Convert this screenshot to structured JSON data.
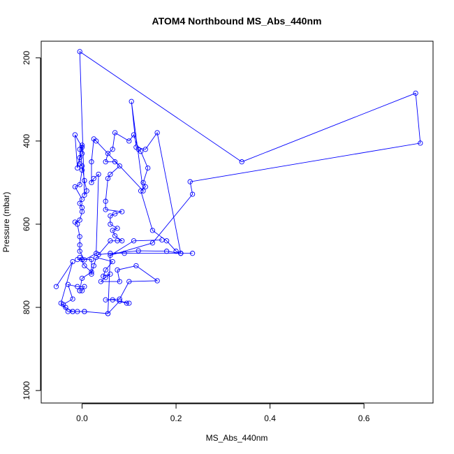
{
  "chart_data": {
    "type": "line",
    "title": "ATOM4 Northbound MS_Abs_440nm",
    "xlabel": "MS_Abs_440nm",
    "ylabel": "Pressure (mbar)",
    "xlim": [
      -0.087,
      0.747
    ],
    "ylim": [
      1030,
      160
    ],
    "y_reversed": true,
    "xticks": [
      0.0,
      0.2,
      0.4,
      0.6
    ],
    "xtick_labels": [
      "0.0",
      "0.2",
      "0.4",
      "0.6"
    ],
    "yticks": [
      200,
      400,
      600,
      800,
      1000
    ],
    "ytick_labels": [
      "200",
      "400",
      "600",
      "800",
      "1000"
    ],
    "grid": false,
    "legend": "none",
    "marker": "open-circle",
    "series": [
      {
        "color": "#0000ff",
        "points": [
          [
            -0.055,
            750
          ],
          [
            -0.02,
            690
          ],
          [
            -0.045,
            790
          ],
          [
            -0.03,
            810
          ],
          [
            -0.01,
            810
          ],
          [
            0.005,
            810
          ],
          [
            0.055,
            815
          ],
          [
            0.08,
            785
          ],
          [
            0.1,
            790
          ],
          [
            0.095,
            790
          ],
          [
            0.065,
            782
          ],
          [
            0.05,
            782
          ],
          [
            0.08,
            780
          ],
          [
            0.1,
            738
          ],
          [
            0.16,
            736
          ],
          [
            0.115,
            700
          ],
          [
            0.075,
            710
          ],
          [
            0.08,
            738
          ],
          [
            0.04,
            738
          ],
          [
            0.05,
            728
          ],
          [
            0.06,
            720
          ],
          [
            0.045,
            725
          ],
          [
            0.05,
            710
          ],
          [
            0.065,
            690
          ],
          [
            0.03,
            680
          ],
          [
            0.025,
            700
          ],
          [
            0.02,
            720
          ],
          [
            0.02,
            685
          ],
          [
            -0.01,
            685
          ],
          [
            0.0,
            685
          ],
          [
            -0.005,
            680
          ],
          [
            0.005,
            700
          ],
          [
            0.02,
            715
          ],
          [
            0.0,
            730
          ],
          [
            -0.005,
            760
          ],
          [
            -0.005,
            760
          ],
          [
            0.0,
            760
          ],
          [
            0.005,
            750
          ],
          [
            -0.01,
            750
          ],
          [
            -0.03,
            745
          ],
          [
            -0.02,
            780
          ],
          [
            -0.04,
            793
          ],
          [
            -0.035,
            800
          ],
          [
            -0.02,
            810
          ],
          [
            -0.02,
            810
          ],
          [
            0.005,
            810
          ],
          [
            0.055,
            815
          ],
          [
            0.06,
            670
          ],
          [
            0.09,
            670
          ],
          [
            0.21,
            670
          ],
          [
            0.235,
            670
          ],
          [
            0.21,
            670
          ],
          [
            0.18,
            665
          ],
          [
            0.12,
            664
          ],
          [
            0.035,
            673
          ],
          [
            0.06,
            640
          ],
          [
            0.075,
            640
          ],
          [
            0.085,
            640
          ],
          [
            0.07,
            628
          ],
          [
            0.065,
            615
          ],
          [
            0.075,
            610
          ],
          [
            0.06,
            600
          ],
          [
            0.06,
            580
          ],
          [
            0.07,
            575
          ],
          [
            0.085,
            570
          ],
          [
            0.05,
            565
          ],
          [
            0.05,
            545
          ],
          [
            0.055,
            490
          ],
          [
            0.06,
            480
          ],
          [
            0.08,
            460
          ],
          [
            0.07,
            450
          ],
          [
            0.05,
            450
          ],
          [
            0.055,
            430
          ],
          [
            0.065,
            420
          ],
          [
            0.07,
            380
          ],
          [
            0.1,
            400
          ],
          [
            0.11,
            385
          ],
          [
            0.12,
            420
          ],
          [
            0.125,
            425
          ],
          [
            0.14,
            465
          ],
          [
            0.13,
            500
          ],
          [
            0.135,
            510
          ],
          [
            0.125,
            520
          ],
          [
            0.15,
            615
          ],
          [
            0.18,
            640
          ],
          [
            0.2,
            665
          ],
          [
            0.21,
            670
          ],
          [
            0.16,
            380
          ],
          [
            0.135,
            420
          ],
          [
            0.115,
            415
          ],
          [
            0.105,
            305
          ],
          [
            0.13,
            520
          ],
          [
            0.03,
            400
          ],
          [
            0.025,
            395
          ],
          [
            0.02,
            450
          ],
          [
            0.02,
            500
          ],
          [
            0.025,
            490
          ],
          [
            0.035,
            480
          ],
          [
            0.03,
            670
          ],
          [
            0.005,
            686
          ],
          [
            -0.005,
            665
          ],
          [
            -0.005,
            650
          ],
          [
            -0.005,
            630
          ],
          [
            -0.01,
            600
          ],
          [
            -0.015,
            595
          ],
          [
            -0.005,
            590
          ],
          [
            0.0,
            570
          ],
          [
            0.0,
            560
          ],
          [
            -0.005,
            550
          ],
          [
            0.0,
            540
          ],
          [
            -0.015,
            510
          ],
          [
            -0.005,
            505
          ],
          [
            0.0,
            470
          ],
          [
            0.0,
            460
          ],
          [
            -0.005,
            455
          ],
          [
            -0.005,
            440
          ],
          [
            0.0,
            430
          ],
          [
            0.0,
            415
          ],
          [
            -0.015,
            385
          ],
          [
            -0.01,
            465
          ],
          [
            0.0,
            410
          ],
          [
            -0.005,
            420
          ],
          [
            0.005,
            495
          ],
          [
            0.01,
            520
          ],
          [
            0.005,
            530
          ],
          [
            -0.005,
            185
          ],
          [
            0.34,
            450
          ],
          [
            0.71,
            285
          ],
          [
            0.72,
            405
          ],
          [
            0.23,
            498
          ],
          [
            0.235,
            528
          ],
          [
            0.15,
            645
          ],
          [
            0.06,
            675
          ],
          [
            0.11,
            640
          ],
          [
            0.17,
            638
          ]
        ]
      }
    ]
  }
}
